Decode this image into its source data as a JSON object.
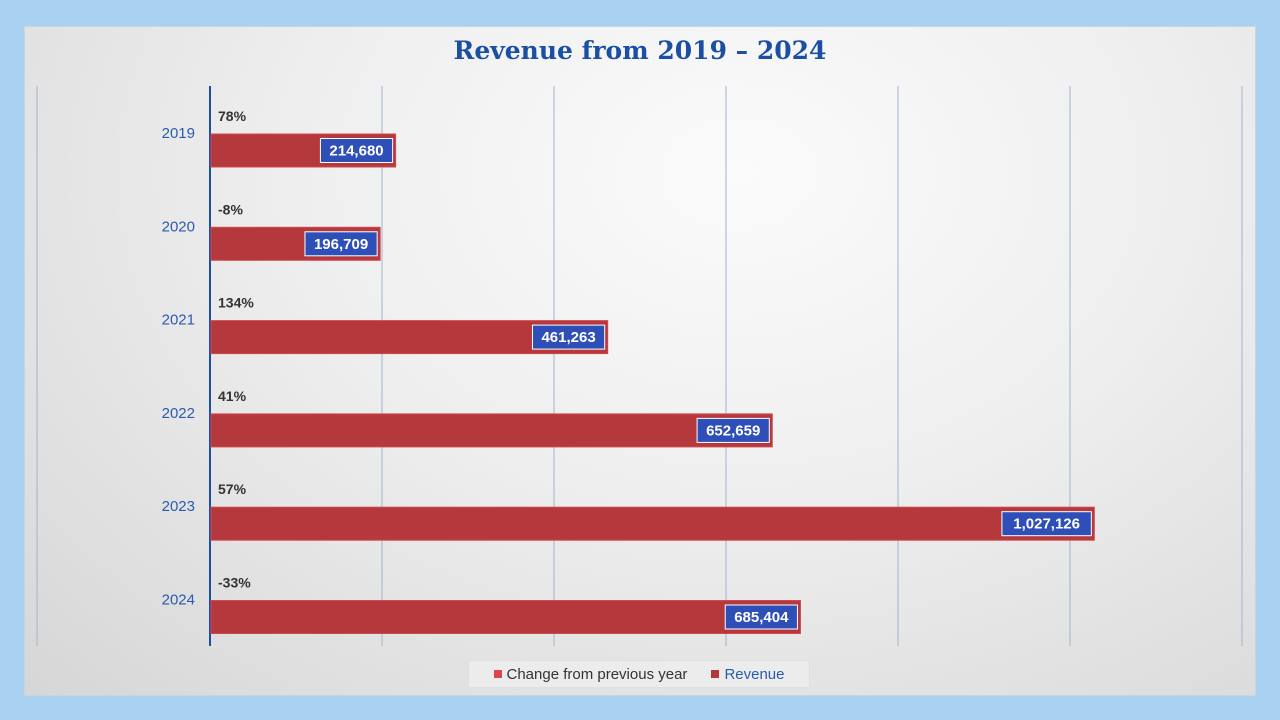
{
  "chart_data": {
    "type": "bar",
    "orientation": "horizontal",
    "title": "Revenue from 2019 – 2024",
    "categories": [
      "2019",
      "2020",
      "2021",
      "2022",
      "2023",
      "2024"
    ],
    "series": [
      {
        "name": "Revenue",
        "values": [
          214680,
          196709,
          461263,
          652659,
          1027126,
          685404
        ],
        "labels": [
          "214,680",
          "196,709",
          "461,263",
          "652,659",
          "1,027,126",
          "685,404"
        ]
      },
      {
        "name": "Change from previous year",
        "labels": [
          "78%",
          "-8%",
          "134%",
          "41%",
          "57%",
          "-33%"
        ]
      }
    ],
    "xlim": [
      0,
      1200000
    ],
    "grid": true,
    "legend_position": "bottom"
  },
  "legend": {
    "change_label": "Change from previous year",
    "revenue_label": "Revenue"
  },
  "colors": {
    "bar": "#b5383c",
    "bar_edge": "#d0484d",
    "label_box": "#2f4fb8",
    "axis": "#1a4fa3",
    "year_text": "#2a5bb0",
    "change_text": "#333333",
    "gridline": "#9fb3d0",
    "legend_change_swatch": "#d9464b",
    "legend_revenue_swatch": "#b5383c"
  }
}
